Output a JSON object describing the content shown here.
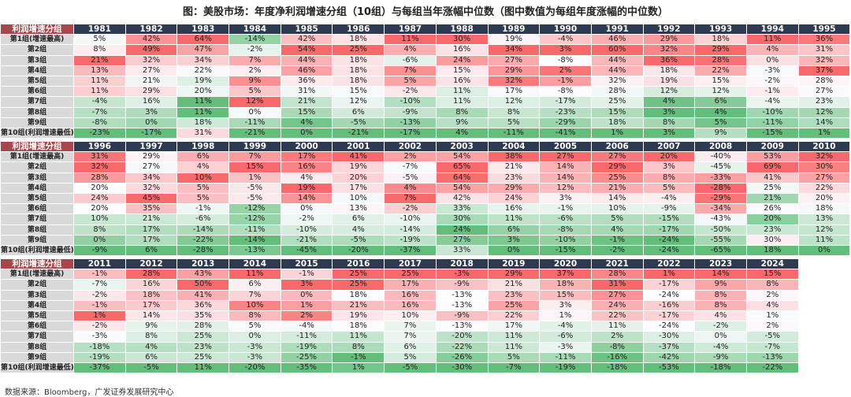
{
  "title": "图：美股市场：年度净利润增速分组（10组）与每组当年涨幅中位数（图中数值为每组年度涨幅的中位数）",
  "source": "数据来源：Bloomberg，广发证券发展研究中心",
  "colors": {
    "high": "#F8696B",
    "mid": "#FCFCFF",
    "low": "#63BE7B",
    "year_header": "#2E3A50",
    "label_header": "#A5474C",
    "label_bg": "#D9D9D9"
  },
  "chart_data": {
    "type": "heatmap",
    "title": "图：美股市场：年度净利润增速分组（10组）与每组当年涨幅中位数（图中数值为每组年度涨幅的中位数）",
    "corner_label": "利润增速分组",
    "value_unit": "%",
    "color_scale": "per-year column, green (low) – white (median) – red (high)",
    "row_labels": [
      "第1组(增速最高)",
      "第2组",
      "第3组",
      "第4组",
      "第5组",
      "第6组",
      "第7组",
      "第8组",
      "第9组",
      "第10组(利润增速最低)"
    ],
    "blocks": [
      {
        "years": [
          "1981",
          "1982",
          "1983",
          "1984",
          "1985",
          "1986",
          "1987",
          "1988",
          "1989",
          "1990",
          "1991",
          "1992",
          "1993",
          "1994",
          "1995"
        ],
        "rows": [
          [
            5,
            42,
            64,
            -14,
            42,
            18,
            11,
            30,
            19,
            -4,
            46,
            29,
            18,
            11,
            36
          ],
          [
            8,
            49,
            47,
            -2,
            54,
            25,
            4,
            16,
            34,
            3,
            60,
            32,
            29,
            4,
            31
          ],
          [
            21,
            32,
            34,
            7,
            44,
            18,
            -6,
            24,
            27,
            -8,
            44,
            36,
            28,
            0,
            32
          ],
          [
            13,
            27,
            22,
            2,
            46,
            18,
            7,
            15,
            29,
            2,
            44,
            18,
            22,
            -3,
            37
          ],
          [
            11,
            21,
            19,
            9,
            36,
            18,
            5,
            16,
            32,
            -1,
            32,
            19,
            15,
            -2,
            28
          ],
          [
            11,
            29,
            20,
            5,
            31,
            15,
            -2,
            11,
            17,
            -8,
            28,
            12,
            12,
            -1,
            27
          ],
          [
            -4,
            16,
            11,
            12,
            21,
            12,
            -10,
            11,
            12,
            -17,
            25,
            4,
            6,
            -4,
            23
          ],
          [
            -7,
            3,
            11,
            0,
            15,
            6,
            -9,
            8,
            8,
            -23,
            15,
            3,
            4,
            -10,
            12
          ],
          [
            -8,
            0,
            18,
            -11,
            4,
            -5,
            -13,
            9,
            5,
            -29,
            18,
            8,
            5,
            -11,
            14
          ],
          [
            -23,
            -17,
            31,
            -21,
            0,
            -21,
            -17,
            4,
            -11,
            -41,
            1,
            3,
            9,
            -15,
            1
          ]
        ]
      },
      {
        "years": [
          "1996",
          "1997",
          "1998",
          "1999",
          "2000",
          "2001",
          "2002",
          "2003",
          "2004",
          "2005",
          "2006",
          "2007",
          "2008",
          "2009",
          "2010"
        ],
        "rows": [
          [
            31,
            29,
            6,
            7,
            17,
            41,
            2,
            54,
            38,
            27,
            27,
            20,
            -40,
            53,
            32
          ],
          [
            32,
            27,
            4,
            15,
            16,
            19,
            -7,
            65,
            21,
            14,
            29,
            3,
            -45,
            69,
            30
          ],
          [
            28,
            34,
            10,
            1,
            4,
            20,
            -5,
            64,
            23,
            14,
            25,
            8,
            -33,
            41,
            27
          ],
          [
            20,
            32,
            5,
            -5,
            19,
            17,
            4,
            54,
            29,
            12,
            21,
            5,
            -28,
            25,
            22
          ],
          [
            24,
            45,
            5,
            -5,
            14,
            10,
            7,
            42,
            24,
            3,
            14,
            -4,
            -29,
            21,
            20
          ],
          [
            20,
            35,
            -1,
            -12,
            0,
            13,
            -2,
            33,
            16,
            -1,
            10,
            -9,
            -34,
            26,
            18
          ],
          [
            10,
            21,
            -6,
            -12,
            -2,
            6,
            -10,
            30,
            11,
            -6,
            5,
            -15,
            -43,
            20,
            13
          ],
          [
            8,
            17,
            -14,
            -11,
            -10,
            4,
            -14,
            24,
            6,
            -8,
            4,
            -17,
            -50,
            23,
            12
          ],
          [
            0,
            17,
            -22,
            -14,
            -21,
            -5,
            -19,
            27,
            3,
            -10,
            -1,
            -24,
            -55,
            30,
            11
          ],
          [
            -9,
            6,
            -28,
            -13,
            -45,
            -20,
            -37,
            33,
            0,
            -15,
            -2,
            -24,
            -65,
            18,
            0
          ]
        ]
      },
      {
        "years": [
          "2011",
          "2012",
          "2013",
          "2014",
          "2015",
          "2016",
          "2017",
          "2018",
          "2019",
          "2020",
          "2021",
          "2022",
          "2023",
          "2024"
        ],
        "rows": [
          [
            -1,
            28,
            43,
            11,
            -1,
            25,
            25,
            -3,
            29,
            37,
            28,
            1,
            14,
            15
          ],
          [
            -7,
            16,
            50,
            6,
            3,
            25,
            17,
            -9,
            21,
            18,
            31,
            -17,
            9,
            8
          ],
          [
            -2,
            18,
            41,
            7,
            0,
            18,
            16,
            -13,
            23,
            15,
            27,
            -24,
            8,
            2
          ],
          [
            -1,
            17,
            36,
            10,
            1,
            21,
            16,
            -13,
            25,
            3,
            24,
            -16,
            8,
            4
          ],
          [
            1,
            14,
            35,
            8,
            2,
            19,
            10,
            -9,
            22,
            1,
            22,
            -17,
            4,
            1
          ],
          [
            -2,
            9,
            28,
            5,
            -4,
            18,
            7,
            -13,
            17,
            -4,
            11,
            -24,
            -2,
            2
          ],
          [
            -3,
            8,
            25,
            0,
            -11,
            11,
            7,
            -20,
            11,
            -6,
            2,
            -30,
            0,
            -5
          ],
          [
            -18,
            4,
            23,
            -3,
            -19,
            8,
            6,
            -22,
            11,
            -3,
            -8,
            -37,
            -4,
            -7
          ],
          [
            -19,
            6,
            25,
            -3,
            -25,
            -1,
            5,
            -26,
            5,
            -11,
            -16,
            -42,
            -9,
            -13
          ],
          [
            -37,
            -5,
            11,
            -20,
            -35,
            1,
            -5,
            -30,
            -7,
            -19,
            -18,
            -53,
            -18,
            -22
          ]
        ]
      }
    ]
  }
}
